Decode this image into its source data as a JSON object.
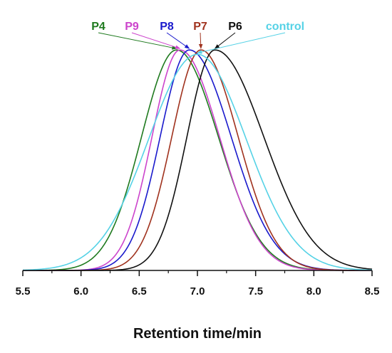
{
  "chart_data": {
    "type": "line",
    "title": "",
    "xlabel": "Retention time/min",
    "ylabel": "",
    "xlim": [
      5.5,
      8.5
    ],
    "ylim": [
      0,
      1.02
    ],
    "xticks": [
      "5.5",
      "6.0",
      "6.5",
      "7.0",
      "7.5",
      "8.0",
      "8.5"
    ],
    "grid": false,
    "legend": "top, labels with arrows pointing to peaks",
    "series": [
      {
        "name": "P4",
        "color": "#1f7a1f",
        "peak_x": 6.82,
        "peak_y": 1.0,
        "sigma_left": 0.3,
        "sigma_right": 0.36,
        "baseline_x_start": 5.6
      },
      {
        "name": "P9",
        "color": "#cc44cc",
        "peak_x": 6.85,
        "peak_y": 1.0,
        "sigma_left": 0.24,
        "sigma_right": 0.34
      },
      {
        "name": "P8",
        "color": "#1a1acc",
        "peak_x": 6.93,
        "peak_y": 1.0,
        "sigma_left": 0.25,
        "sigma_right": 0.36
      },
      {
        "name": "P7",
        "color": "#a0321e",
        "peak_x": 7.03,
        "peak_y": 1.0,
        "sigma_left": 0.25,
        "sigma_right": 0.32
      },
      {
        "name": "P6",
        "color": "#111111",
        "peak_x": 7.15,
        "peak_y": 1.0,
        "sigma_left": 0.24,
        "sigma_right": 0.42
      },
      {
        "name": "control",
        "color": "#55d2e6",
        "peak_x": 7.0,
        "peak_y": 0.98,
        "sigma_left": 0.42,
        "sigma_right": 0.42
      }
    ]
  }
}
